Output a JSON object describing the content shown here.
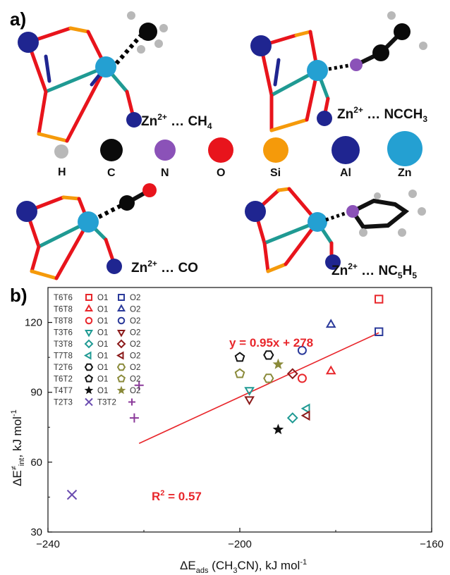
{
  "panel_a": {
    "label": "a)",
    "complexes": [
      {
        "prefix": "Zn",
        "sup": "2+",
        "mid": " … CH",
        "sub": "4",
        "suffix": ""
      },
      {
        "prefix": "Zn",
        "sup": "2+",
        "mid": " … NCCH",
        "sub": "3",
        "suffix": ""
      },
      {
        "prefix": "Zn",
        "sup": "2+",
        "mid": " … CO",
        "sub": "",
        "suffix": ""
      },
      {
        "prefix": "Zn",
        "sup": "2+",
        "mid": " … NC",
        "sub": "5",
        "suffix": "H",
        "sub2": "5"
      }
    ],
    "atoms": [
      {
        "label": "H",
        "color": "#b8b8b8"
      },
      {
        "label": "C",
        "color": "#0a0a0a"
      },
      {
        "label": "N",
        "color": "#8b52b8"
      },
      {
        "label": "O",
        "color": "#e8141c"
      },
      {
        "label": "Si",
        "color": "#f59a0a"
      },
      {
        "label": "Al",
        "color": "#1f2590"
      },
      {
        "label": "Zn",
        "color": "#24a0d2"
      }
    ]
  },
  "panel_b": {
    "label": "b)",
    "equation": "y = 0.95x + 278",
    "r2_prefix": "R",
    "r2_sup": "2",
    "r2_value": " = 0.57",
    "annotation_color": "#e8262b",
    "ylabel": {
      "main": "ΔE",
      "sup": "≠",
      "sub": "int",
      "unit": ", kJ mol",
      "unit_sup": "-1"
    },
    "xlabel": {
      "main": "ΔE",
      "sub": "ads",
      "rest": " (CH",
      "sub2": "3",
      "rest2": "CN), kJ mol",
      "unit_sup": "-1"
    },
    "legend": [
      {
        "name": "T6T6",
        "o1_marker": "square",
        "o2_marker": "square",
        "color1": "#e8262b",
        "color2": "#2b3a9a",
        "o1": "O1",
        "o2": "O2"
      },
      {
        "name": "T6T8",
        "o1_marker": "triangle-up",
        "o2_marker": "triangle-up",
        "color1": "#e8262b",
        "color2": "#2b3a9a",
        "o1": "O1",
        "o2": "O2"
      },
      {
        "name": "T8T8",
        "o1_marker": "circle",
        "o2_marker": "circle",
        "color1": "#e8262b",
        "color2": "#2b3a9a",
        "o1": "O1",
        "o2": "O2"
      },
      {
        "name": "T3T6",
        "o1_marker": "triangle-down",
        "o2_marker": "triangle-down",
        "color1": "#1f9a93",
        "color2": "#8b1a1a",
        "o1": "O1",
        "o2": "O2"
      },
      {
        "name": "T3T8",
        "o1_marker": "diamond",
        "o2_marker": "diamond",
        "color1": "#1f9a93",
        "color2": "#8b1a1a",
        "o1": "O1",
        "o2": "O2"
      },
      {
        "name": "T7T8",
        "o1_marker": "triangle-left",
        "o2_marker": "triangle-left",
        "color1": "#1f9a93",
        "color2": "#8b1a1a",
        "o1": "O1",
        "o2": "O2"
      },
      {
        "name": "T2T6",
        "o1_marker": "hexagon",
        "o2_marker": "hexagon",
        "color1": "#111111",
        "color2": "#8a8a3a",
        "o1": "O1",
        "o2": "O2"
      },
      {
        "name": "T6T2",
        "o1_marker": "pentagon",
        "o2_marker": "pentagon",
        "color1": "#111111",
        "color2": "#8a8a3a",
        "o1": "O1",
        "o2": "O2"
      },
      {
        "name": "T4T7",
        "o1_marker": "star",
        "o2_marker": "star",
        "color1": "#111111",
        "color2": "#8a8a3a",
        "o1": "O1",
        "o2": "O2"
      },
      {
        "name": "T2T3",
        "o1_marker": "x",
        "color1": "#6b4db0",
        "o1": "",
        "name2": "T3T2",
        "o2_marker": "plus",
        "color2": "#8b3a9a"
      }
    ]
  },
  "chart_data": {
    "type": "scatter",
    "xlabel": "ΔEads (CH3CN), kJ mol-1",
    "ylabel": "ΔE≠int, kJ mol-1",
    "xlim": [
      -240,
      -160
    ],
    "ylim": [
      30,
      135
    ],
    "xticks": [
      -240,
      -200,
      -160
    ],
    "yticks": [
      30,
      60,
      90,
      120
    ],
    "grid": false,
    "legend_position": "top-left",
    "fit": {
      "equation": "y = 0.95x + 278",
      "r2": 0.57,
      "x_range": [
        -221,
        -171
      ]
    },
    "points": [
      {
        "series": "T6T6 O1",
        "marker": "square",
        "color": "#e8262b",
        "x": -171,
        "y": 130
      },
      {
        "series": "T6T6 O2",
        "marker": "square",
        "color": "#2b3a9a",
        "x": -171,
        "y": 116
      },
      {
        "series": "T6T8 O1",
        "marker": "triangle-up",
        "color": "#e8262b",
        "x": -181,
        "y": 99
      },
      {
        "series": "T6T8 O2",
        "marker": "triangle-up",
        "color": "#2b3a9a",
        "x": -181,
        "y": 119
      },
      {
        "series": "T8T8 O1",
        "marker": "circle",
        "color": "#e8262b",
        "x": -187,
        "y": 96
      },
      {
        "series": "T8T8 O2",
        "marker": "circle",
        "color": "#2b3a9a",
        "x": -187,
        "y": 108
      },
      {
        "series": "T3T6 O1",
        "marker": "triangle-down",
        "color": "#1f9a93",
        "x": -198,
        "y": 91
      },
      {
        "series": "T3T6 O2",
        "marker": "triangle-down",
        "color": "#8b1a1a",
        "x": -198,
        "y": 87
      },
      {
        "series": "T3T8 O1",
        "marker": "diamond",
        "color": "#1f9a93",
        "x": -189,
        "y": 79
      },
      {
        "series": "T3T8 O2",
        "marker": "diamond",
        "color": "#8b1a1a",
        "x": -189,
        "y": 98
      },
      {
        "series": "T7T8 O1",
        "marker": "triangle-left",
        "color": "#1f9a93",
        "x": -186,
        "y": 83
      },
      {
        "series": "T7T8 O2",
        "marker": "triangle-left",
        "color": "#8b1a1a",
        "x": -186,
        "y": 80
      },
      {
        "series": "T2T6 O1",
        "marker": "hexagon",
        "color": "#111111",
        "x": -194,
        "y": 106
      },
      {
        "series": "T2T6 O2",
        "marker": "hexagon",
        "color": "#8a8a3a",
        "x": -194,
        "y": 96
      },
      {
        "series": "T6T2 O1",
        "marker": "pentagon",
        "color": "#111111",
        "x": -200,
        "y": 105
      },
      {
        "series": "T6T2 O2",
        "marker": "pentagon",
        "color": "#8a8a3a",
        "x": -200,
        "y": 98
      },
      {
        "series": "T4T7 O1",
        "marker": "star",
        "color": "#111111",
        "x": -192,
        "y": 74
      },
      {
        "series": "T4T7 O2",
        "marker": "star",
        "color": "#8a8a3a",
        "x": -192,
        "y": 102
      },
      {
        "series": "T2T3",
        "marker": "x",
        "color": "#6b4db0",
        "x": -235,
        "y": 46
      },
      {
        "series": "T3T2",
        "marker": "plus",
        "color": "#8b3a9a",
        "x": -221,
        "y": 93
      },
      {
        "series": "T3T2",
        "marker": "plus",
        "color": "#8b3a9a",
        "x": -222,
        "y": 79
      }
    ]
  }
}
